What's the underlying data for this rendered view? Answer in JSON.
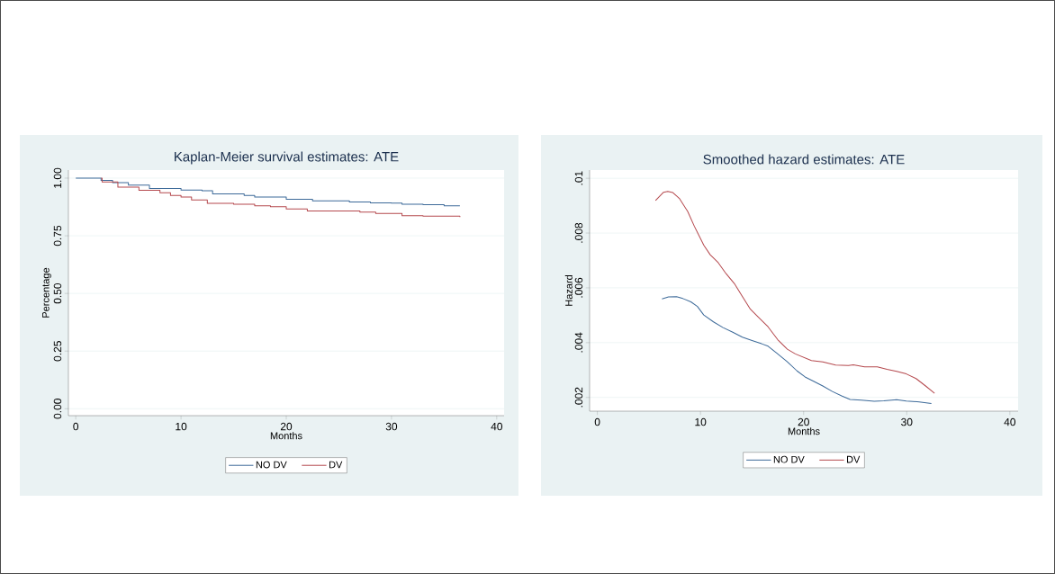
{
  "chart_data": [
    {
      "type": "step",
      "title": "Kaplan-Meier survival estimates: ATE",
      "xlabel": "Months",
      "ylabel": "Percentage",
      "xlim": [
        -0.7,
        40.7
      ],
      "ylim": [
        -0.03,
        1.035
      ],
      "xticks": [
        0,
        10,
        20,
        30,
        40
      ],
      "yticks": [
        {
          "value": 0,
          "label": "0.00"
        },
        {
          "value": 0.25,
          "label": "0.25"
        },
        {
          "value": 0.5,
          "label": "0.50"
        },
        {
          "value": 0.75,
          "label": "0.75"
        },
        {
          "value": 1,
          "label": "1.00"
        }
      ],
      "grid": "y",
      "legend": "bottom",
      "series": [
        {
          "name": "NO DV",
          "color": "#3d6a99",
          "x": [
            0,
            2.4,
            3.5,
            5,
            7,
            10,
            12,
            13,
            16,
            17,
            20,
            22.5,
            26,
            28,
            30,
            31,
            33,
            35,
            36.5
          ],
          "values": [
            1.0,
            0.99,
            0.98,
            0.97,
            0.955,
            0.948,
            0.945,
            0.932,
            0.925,
            0.918,
            0.908,
            0.901,
            0.897,
            0.893,
            0.892,
            0.887,
            0.885,
            0.88,
            0.88
          ]
        },
        {
          "name": "DV",
          "color": "#b5494e",
          "x": [
            2.4,
            2.5,
            4,
            6,
            8,
            9,
            10,
            11,
            12.5,
            15,
            17,
            18.5,
            20,
            22,
            27,
            28.5,
            31,
            33,
            36.5
          ],
          "values": [
            1.0,
            0.983,
            0.961,
            0.947,
            0.937,
            0.925,
            0.918,
            0.905,
            0.891,
            0.887,
            0.88,
            0.876,
            0.866,
            0.858,
            0.853,
            0.847,
            0.837,
            0.835,
            0.831
          ]
        }
      ]
    },
    {
      "type": "line",
      "title": "Smoothed hazard estimates: ATE",
      "xlabel": "Months",
      "ylabel": "Hazard",
      "xlim": [
        -0.75,
        40.8
      ],
      "ylim": [
        0.0015,
        0.0103
      ],
      "xticks": [
        0,
        10,
        20,
        30,
        40
      ],
      "yticks": [
        {
          "value": 0.002,
          "label": ".002"
        },
        {
          "value": 0.004,
          "label": ".004"
        },
        {
          "value": 0.006,
          "label": ".006"
        },
        {
          "value": 0.008,
          "label": ".008"
        },
        {
          "value": 0.01,
          "label": ".01"
        }
      ],
      "grid": "y",
      "legend": "bottom",
      "series": [
        {
          "name": "NO DV",
          "color": "#3d6a99",
          "x": [
            6.27,
            6.9,
            7.68,
            8.29,
            9.07,
            9.7,
            10.32,
            11.26,
            12.19,
            13.13,
            14.06,
            15.0,
            15.93,
            16.56,
            17.49,
            18.42,
            19.36,
            20.14,
            20.92,
            21.86,
            22.79,
            23.73,
            24.51,
            25.6,
            26.85,
            27.78,
            29.02,
            29.96,
            31.21,
            32.39
          ],
          "values": [
            0.0056,
            0.00567,
            0.00568,
            0.00561,
            0.00549,
            0.00532,
            0.00501,
            0.00476,
            0.00455,
            0.00438,
            0.0042,
            0.00408,
            0.00396,
            0.00387,
            0.00359,
            0.0033,
            0.00297,
            0.00275,
            0.0026,
            0.00242,
            0.00222,
            0.00205,
            0.00193,
            0.0019,
            0.00186,
            0.00188,
            0.00192,
            0.00187,
            0.00184,
            0.00178
          ]
        },
        {
          "name": "DV",
          "color": "#b5494e",
          "x": [
            5.64,
            6.42,
            6.83,
            7.3,
            7.98,
            8.76,
            9.39,
            10.32,
            10.94,
            11.72,
            12.5,
            13.28,
            14.06,
            14.84,
            15.62,
            16.55,
            17.49,
            18.42,
            19.2,
            19.98,
            20.76,
            21.86,
            23.1,
            24.35,
            24.82,
            25.91,
            27.15,
            28.09,
            29.02,
            29.96,
            30.9,
            31.83,
            32.7
          ],
          "values": [
            0.00919,
            0.00949,
            0.00952,
            0.00948,
            0.00925,
            0.00879,
            0.00826,
            0.00756,
            0.00721,
            0.00692,
            0.00651,
            0.00616,
            0.00569,
            0.00522,
            0.00493,
            0.00458,
            0.00411,
            0.00376,
            0.00359,
            0.00347,
            0.00335,
            0.0033,
            0.00318,
            0.00317,
            0.00319,
            0.00312,
            0.00312,
            0.00303,
            0.00295,
            0.00286,
            0.00269,
            0.00242,
            0.00215
          ]
        }
      ]
    }
  ]
}
